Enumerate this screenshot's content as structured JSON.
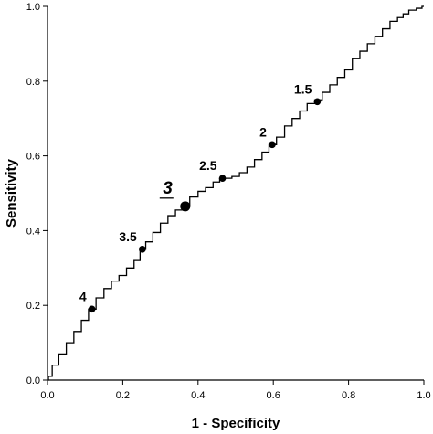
{
  "chart_data": {
    "type": "line",
    "xlabel": "1 - Specificity",
    "ylabel": "Sensitivity",
    "xlim": [
      0,
      1
    ],
    "ylim": [
      0,
      1
    ],
    "xticks": [
      "0.0",
      "0.2",
      "0.4",
      "0.6",
      "0.8",
      "1.0"
    ],
    "yticks": [
      "0.0",
      "0.2",
      "0.4",
      "0.6",
      "0.8",
      "1.0"
    ],
    "grid": false,
    "series": [
      {
        "x": [
          0.0,
          0.005,
          0.02,
          0.04,
          0.06,
          0.08,
          0.1,
          0.118,
          0.14,
          0.16,
          0.18,
          0.2,
          0.22,
          0.24,
          0.252,
          0.27,
          0.29,
          0.31,
          0.33,
          0.35,
          0.366,
          0.39,
          0.41,
          0.43,
          0.45,
          0.465,
          0.48,
          0.5,
          0.52,
          0.54,
          0.56,
          0.58,
          0.597,
          0.62,
          0.64,
          0.66,
          0.68,
          0.7,
          0.72,
          0.74,
          0.76,
          0.78,
          0.8,
          0.82,
          0.84,
          0.86,
          0.88,
          0.9,
          0.92,
          0.94,
          0.95,
          0.97,
          0.99,
          1.0
        ],
        "y": [
          0.0,
          0.01,
          0.04,
          0.07,
          0.1,
          0.13,
          0.16,
          0.19,
          0.22,
          0.245,
          0.265,
          0.28,
          0.3,
          0.32,
          0.35,
          0.37,
          0.395,
          0.42,
          0.44,
          0.455,
          0.465,
          0.49,
          0.505,
          0.515,
          0.53,
          0.54,
          0.54,
          0.545,
          0.555,
          0.57,
          0.59,
          0.61,
          0.63,
          0.65,
          0.68,
          0.7,
          0.72,
          0.74,
          0.75,
          0.77,
          0.79,
          0.81,
          0.83,
          0.86,
          0.88,
          0.9,
          0.92,
          0.94,
          0.96,
          0.97,
          0.98,
          0.99,
          0.995,
          1.0
        ]
      }
    ],
    "points": [
      {
        "label": "4",
        "x": 0.118,
        "y": 0.19
      },
      {
        "label": "3.5",
        "x": 0.252,
        "y": 0.35
      },
      {
        "label": "3",
        "x": 0.366,
        "y": 0.465,
        "emphasis": true
      },
      {
        "label": "2.5",
        "x": 0.465,
        "y": 0.54
      },
      {
        "label": "2",
        "x": 0.597,
        "y": 0.63
      },
      {
        "label": "1.5",
        "x": 0.717,
        "y": 0.745
      }
    ]
  }
}
